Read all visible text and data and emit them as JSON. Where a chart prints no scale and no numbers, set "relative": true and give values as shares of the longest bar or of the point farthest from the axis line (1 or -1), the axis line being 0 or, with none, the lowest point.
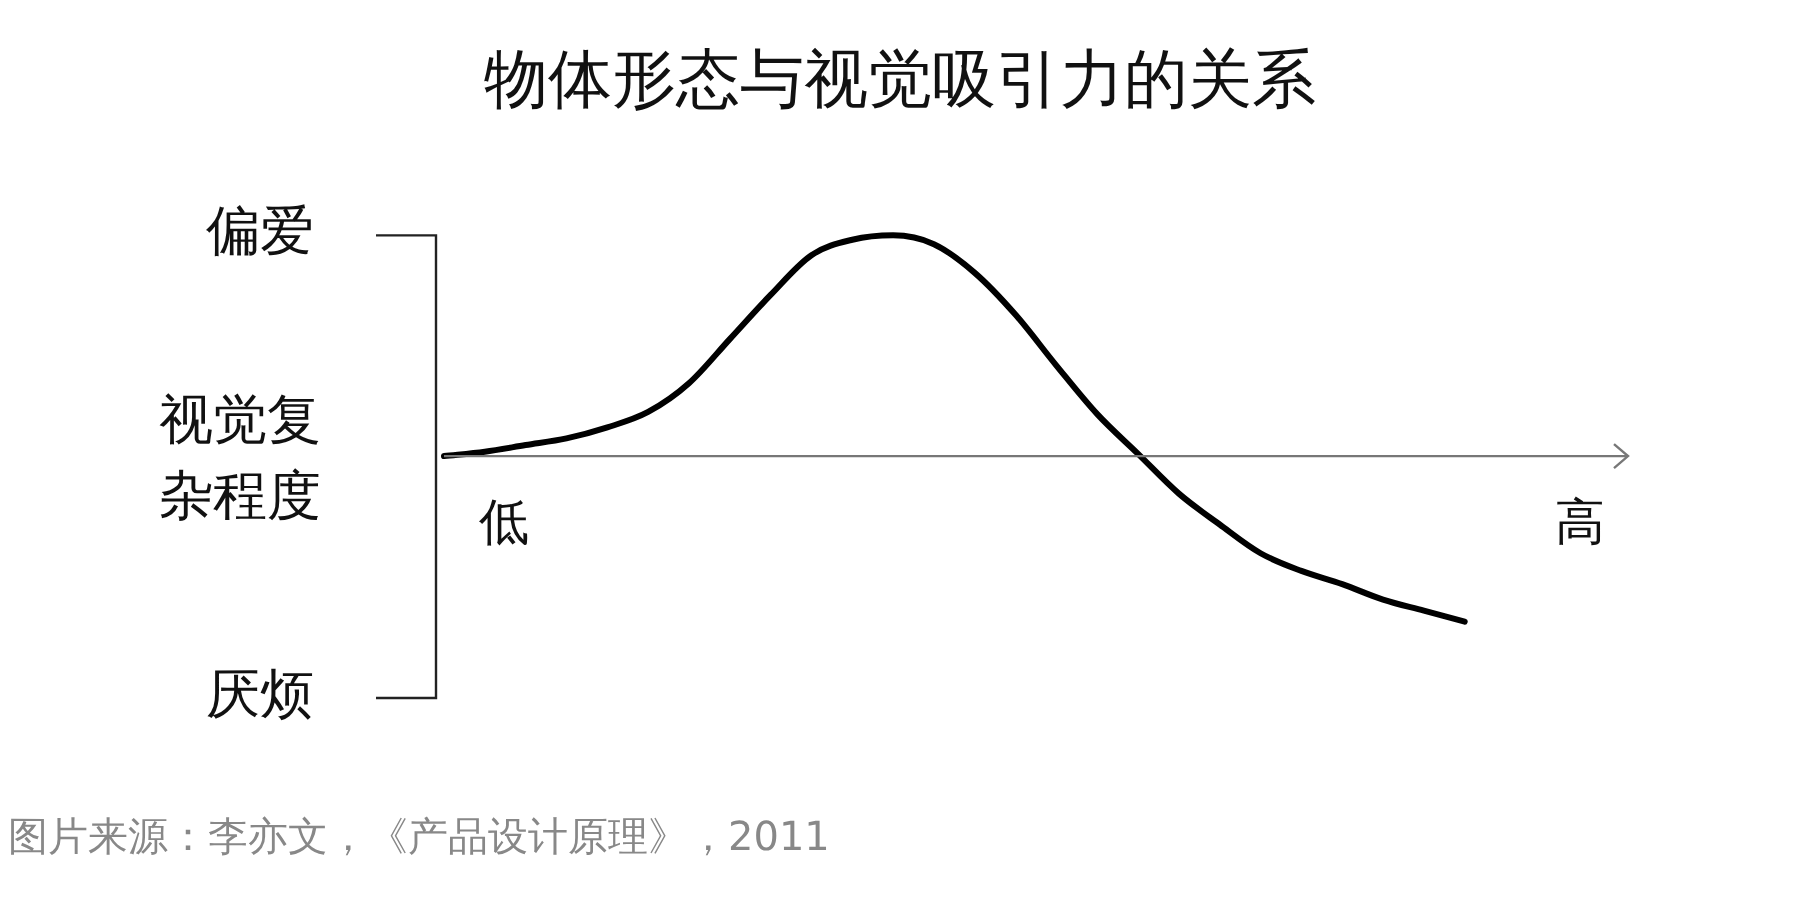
{
  "chart_data": {
    "type": "line",
    "title": "物体形态与视觉吸引力的关系",
    "xlabel": "视觉复杂程度",
    "relative": true,
    "legend": false,
    "marker": "none",
    "line_style": "solid",
    "categories": [
      null,
      null,
      null,
      null,
      null,
      null,
      null,
      null,
      null,
      null,
      null,
      null,
      null,
      null,
      null,
      null,
      null,
      null,
      null,
      null,
      null,
      null,
      null,
      null,
      null,
      null,
      null,
      null,
      null,
      null
    ],
    "series": [
      {
        "color": "#000000",
        "values": [
          0,
          0.02,
          0.05,
          0.08,
          0.13,
          0.2,
          0.33,
          0.53,
          0.73,
          0.91,
          0.98,
          1,
          0.96,
          0.83,
          0.64,
          0.41,
          0.19,
          0.01,
          -0.17,
          -0.31,
          -0.44,
          -0.52,
          -0.58,
          -0.65,
          -0.7,
          -0.75,
          null,
          null,
          null,
          null
        ]
      }
    ],
    "annotations": [
      "偏爱",
      "厌烦",
      "低",
      "高",
      "图片来源：李亦文，《产品设计原理》，2011"
    ]
  }
}
